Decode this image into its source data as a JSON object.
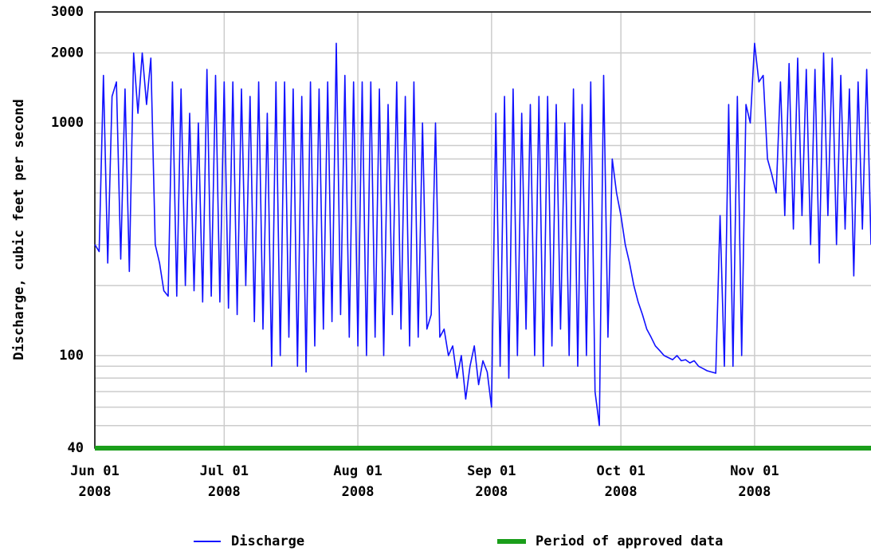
{
  "chart_data": {
    "type": "line",
    "y_label": "Discharge, cubic feet per second",
    "log_scale_y": true,
    "grid": true,
    "xlim": [
      "2008-06-01",
      "2008-11-28"
    ],
    "ylim": [
      40,
      3000
    ],
    "yticks": [
      40,
      100,
      1000,
      2000,
      3000
    ],
    "y_minor_ticks": [
      50,
      60,
      70,
      80,
      90,
      200,
      300,
      400,
      500,
      600,
      700,
      800,
      900
    ],
    "xticks": [
      {
        "value": "2008-06-01",
        "label": "Jun 01\n2008"
      },
      {
        "value": "2008-07-01",
        "label": "Jul 01\n2008"
      },
      {
        "value": "2008-08-01",
        "label": "Aug 01\n2008"
      },
      {
        "value": "2008-09-01",
        "label": "Sep 01\n2008"
      },
      {
        "value": "2008-10-01",
        "label": "Oct 01\n2008"
      },
      {
        "value": "2008-11-01",
        "label": "Nov 01\n2008"
      }
    ],
    "approved_period": {
      "name": "Period of approved data",
      "color": "#1a9e1a",
      "x": [
        "2008-06-01",
        "2008-11-28"
      ]
    },
    "start_date": "2008-06-01",
    "series": [
      {
        "name": "Discharge",
        "color": "#1010ff",
        "values": [
          300,
          280,
          1600,
          250,
          1300,
          1500,
          260,
          1400,
          230,
          2000,
          1100,
          2000,
          1200,
          1900,
          300,
          250,
          190,
          180,
          1500,
          180,
          1400,
          200,
          1100,
          190,
          1000,
          170,
          1700,
          180,
          1600,
          170,
          1500,
          160,
          1500,
          150,
          1400,
          200,
          1300,
          140,
          1500,
          130,
          1100,
          90,
          1500,
          100,
          1500,
          120,
          1400,
          90,
          1300,
          85,
          1500,
          110,
          1400,
          130,
          1500,
          140,
          2200,
          150,
          1600,
          120,
          1500,
          110,
          1500,
          100,
          1500,
          120,
          1400,
          100,
          1200,
          150,
          1500,
          130,
          1300,
          110,
          1500,
          120,
          1000,
          130,
          150,
          1000,
          120,
          130,
          100,
          110,
          80,
          100,
          65,
          90,
          110,
          75,
          95,
          85,
          60,
          1100,
          90,
          1300,
          80,
          1400,
          100,
          1100,
          130,
          1200,
          100,
          1300,
          90,
          1300,
          110,
          1200,
          130,
          1000,
          100,
          1400,
          90,
          1200,
          100,
          1500,
          70,
          50,
          1600,
          120,
          700,
          500,
          400,
          300,
          250,
          200,
          170,
          150,
          130,
          120,
          110,
          105,
          100,
          98,
          96,
          100,
          95,
          96,
          93,
          95,
          90,
          88,
          86,
          85,
          84,
          400,
          90,
          1200,
          90,
          1300,
          100,
          1200,
          1000,
          2200,
          1500,
          1600,
          700,
          600,
          500,
          1500,
          400,
          1800,
          350,
          1900,
          400,
          1700,
          300,
          1700,
          250,
          2000,
          400,
          1900,
          300,
          1600,
          350,
          1400,
          220,
          1500,
          350,
          1700,
          300
        ]
      }
    ]
  }
}
